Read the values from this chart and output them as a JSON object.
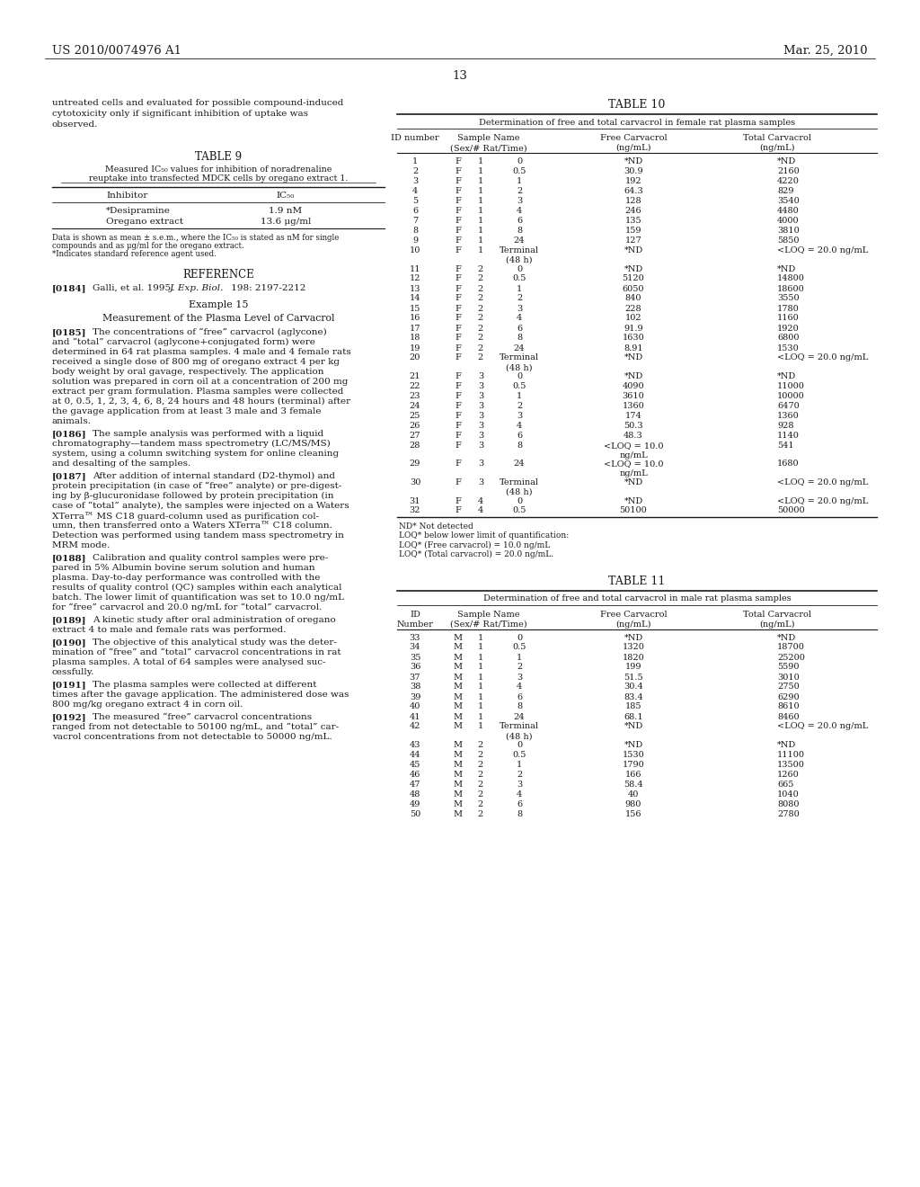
{
  "page_header_left": "US 2010/0074976 A1",
  "page_header_right": "Mar. 25, 2010",
  "page_number": "13",
  "table9_inhibitors": [
    "*Desipramine",
    "Oregano extract"
  ],
  "table9_ic50": [
    "1.9 nM",
    "13.6 μg/ml"
  ],
  "table10_title": "TABLE 10",
  "table10_subtitle": "Determination of free and total carvacrol in female rat plasma samples",
  "table11_title": "TABLE 11",
  "table11_subtitle": "Determination of free and total carvacrol in male rat plasma samples",
  "table10_data": [
    [
      "1",
      "F",
      "1",
      "0",
      "*ND",
      "*ND"
    ],
    [
      "2",
      "F",
      "1",
      "0.5",
      "30.9",
      "2160"
    ],
    [
      "3",
      "F",
      "1",
      "1",
      "192",
      "4220"
    ],
    [
      "4",
      "F",
      "1",
      "2",
      "64.3",
      "829"
    ],
    [
      "5",
      "F",
      "1",
      "3",
      "128",
      "3540"
    ],
    [
      "6",
      "F",
      "1",
      "4",
      "246",
      "4480"
    ],
    [
      "7",
      "F",
      "1",
      "6",
      "135",
      "4000"
    ],
    [
      "8",
      "F",
      "1",
      "8",
      "159",
      "3810"
    ],
    [
      "9",
      "F",
      "1",
      "24",
      "127",
      "5850"
    ],
    [
      "10",
      "F",
      "1",
      "Terminal\n(48 h)",
      "*ND",
      "<LOQ = 20.0 ng/mL"
    ],
    [
      "11",
      "F",
      "2",
      "0",
      "*ND",
      "*ND"
    ],
    [
      "12",
      "F",
      "2",
      "0.5",
      "5120",
      "14800"
    ],
    [
      "13",
      "F",
      "2",
      "1",
      "6050",
      "18600"
    ],
    [
      "14",
      "F",
      "2",
      "2",
      "840",
      "3550"
    ],
    [
      "15",
      "F",
      "2",
      "3",
      "228",
      "1780"
    ],
    [
      "16",
      "F",
      "2",
      "4",
      "102",
      "1160"
    ],
    [
      "17",
      "F",
      "2",
      "6",
      "91.9",
      "1920"
    ],
    [
      "18",
      "F",
      "2",
      "8",
      "1630",
      "6800"
    ],
    [
      "19",
      "F",
      "2",
      "24",
      "8.91",
      "1530"
    ],
    [
      "20",
      "F",
      "2",
      "Terminal\n(48 h)",
      "*ND",
      "<LOQ = 20.0 ng/mL"
    ],
    [
      "21",
      "F",
      "3",
      "0",
      "*ND",
      "*ND"
    ],
    [
      "22",
      "F",
      "3",
      "0.5",
      "4090",
      "11000"
    ],
    [
      "23",
      "F",
      "3",
      "1",
      "3610",
      "10000"
    ],
    [
      "24",
      "F",
      "3",
      "2",
      "1360",
      "6470"
    ],
    [
      "25",
      "F",
      "3",
      "3",
      "174",
      "1360"
    ],
    [
      "26",
      "F",
      "3",
      "4",
      "50.3",
      "928"
    ],
    [
      "27",
      "F",
      "3",
      "6",
      "48.3",
      "1140"
    ],
    [
      "28",
      "F",
      "3",
      "8",
      "<LOQ = 10.0\nng/mL",
      "541"
    ],
    [
      "29",
      "F",
      "3",
      "24",
      "<LOQ = 10.0\nng/mL",
      "1680"
    ],
    [
      "30",
      "F",
      "3",
      "Terminal\n(48 h)",
      "*ND",
      "<LOQ = 20.0 ng/mL"
    ],
    [
      "31",
      "F",
      "4",
      "0",
      "*ND",
      "<LOQ = 20.0 ng/mL"
    ],
    [
      "32",
      "F",
      "4",
      "0.5",
      "50100",
      "50000"
    ]
  ],
  "table10_footnotes": [
    "ND* Not detected",
    "LOQ* below lower limit of quantification:",
    "LOQ* (Free carvacrol) = 10.0 ng/mL",
    "LOQ* (Total carvacrol) = 20.0 ng/mL."
  ],
  "table11_data": [
    [
      "33",
      "M",
      "1",
      "0",
      "*ND",
      "*ND"
    ],
    [
      "34",
      "M",
      "1",
      "0.5",
      "1320",
      "18700"
    ],
    [
      "35",
      "M",
      "1",
      "1",
      "1820",
      "25200"
    ],
    [
      "36",
      "M",
      "1",
      "2",
      "199",
      "5590"
    ],
    [
      "37",
      "M",
      "1",
      "3",
      "51.5",
      "3010"
    ],
    [
      "38",
      "M",
      "1",
      "4",
      "30.4",
      "2750"
    ],
    [
      "39",
      "M",
      "1",
      "6",
      "83.4",
      "6290"
    ],
    [
      "40",
      "M",
      "1",
      "8",
      "185",
      "8610"
    ],
    [
      "41",
      "M",
      "1",
      "24",
      "68.1",
      "8460"
    ],
    [
      "42",
      "M",
      "1",
      "Terminal\n(48 h)",
      "*ND",
      "<LOQ = 20.0 ng/mL"
    ],
    [
      "43",
      "M",
      "2",
      "0",
      "*ND",
      "*ND"
    ],
    [
      "44",
      "M",
      "2",
      "0.5",
      "1530",
      "11100"
    ],
    [
      "45",
      "M",
      "2",
      "1",
      "1790",
      "13500"
    ],
    [
      "46",
      "M",
      "2",
      "2",
      "166",
      "1260"
    ],
    [
      "47",
      "M",
      "2",
      "3",
      "58.4",
      "665"
    ],
    [
      "48",
      "M",
      "2",
      "4",
      "40",
      "1040"
    ],
    [
      "49",
      "M",
      "2",
      "6",
      "980",
      "8080"
    ],
    [
      "50",
      "M",
      "2",
      "8",
      "156",
      "2780"
    ]
  ],
  "bg_color": "#ffffff",
  "text_color": "#1a1a1a"
}
